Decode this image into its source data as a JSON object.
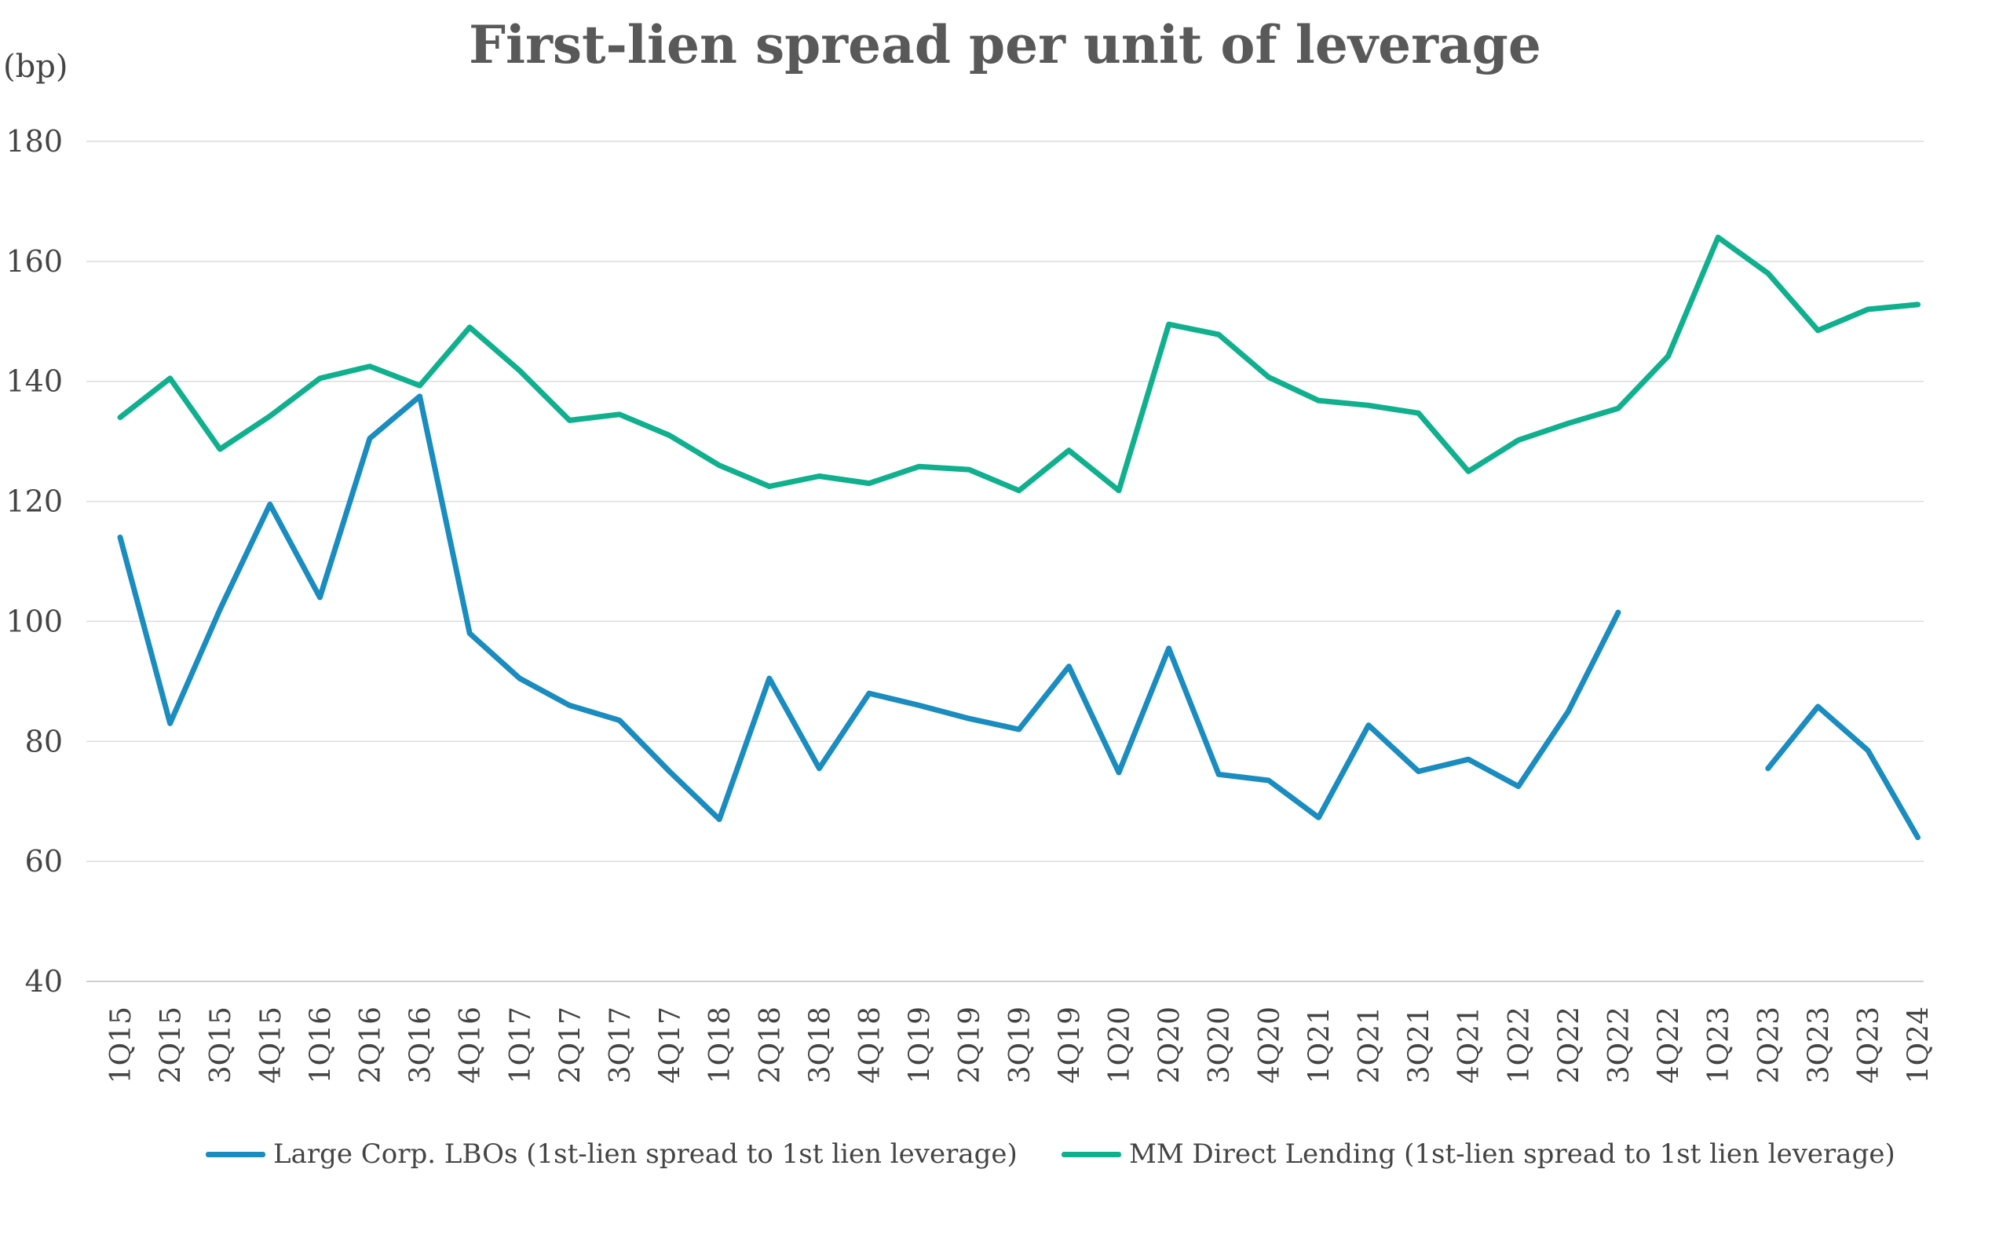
{
  "chart_data": {
    "type": "line",
    "title": "First-lien spread per unit of leverage",
    "ylabel": "(bp)",
    "xlabel": "",
    "ylim": [
      40,
      180
    ],
    "yticks": [
      40,
      60,
      80,
      100,
      120,
      140,
      160,
      180
    ],
    "grid": true,
    "legend_position": "bottom",
    "categories": [
      "1Q15",
      "2Q15",
      "3Q15",
      "4Q15",
      "1Q16",
      "2Q16",
      "3Q16",
      "4Q16",
      "1Q17",
      "2Q17",
      "3Q17",
      "4Q17",
      "1Q18",
      "2Q18",
      "3Q18",
      "4Q18",
      "1Q19",
      "2Q19",
      "3Q19",
      "4Q19",
      "1Q20",
      "2Q20",
      "3Q20",
      "4Q20",
      "1Q21",
      "2Q21",
      "3Q21",
      "4Q21",
      "1Q22",
      "2Q22",
      "3Q22",
      "4Q22",
      "1Q23",
      "2Q23",
      "3Q23",
      "4Q23",
      "1Q24"
    ],
    "series": [
      {
        "name": "Large Corp. LBOs (1st-lien spread to 1st lien leverage)",
        "color": "#1a8cbf",
        "values": [
          114,
          83,
          102,
          119.5,
          104,
          130.5,
          137.5,
          98,
          90.5,
          86,
          83.5,
          75,
          67,
          90.5,
          75.5,
          88,
          86,
          83.8,
          82,
          92.5,
          74.8,
          95.5,
          74.5,
          73.5,
          67.3,
          82.7,
          75,
          77,
          72.5,
          85,
          101.5,
          null,
          null,
          75.5,
          85.8,
          78.5,
          64
        ]
      },
      {
        "name": "MM Direct Lending (1st-lien spread to 1st lien leverage)",
        "color": "#10b08e",
        "values": [
          134,
          140.5,
          128.7,
          134.2,
          140.5,
          142.5,
          139.3,
          149,
          141.8,
          133.5,
          134.5,
          131,
          126,
          122.5,
          124.2,
          123,
          125.8,
          125.3,
          121.8,
          128.5,
          121.8,
          149.5,
          147.8,
          140.7,
          136.8,
          136,
          134.7,
          125,
          130.2,
          133,
          135.5,
          144.2,
          164,
          158,
          148.5,
          152,
          152.8
        ]
      }
    ]
  }
}
